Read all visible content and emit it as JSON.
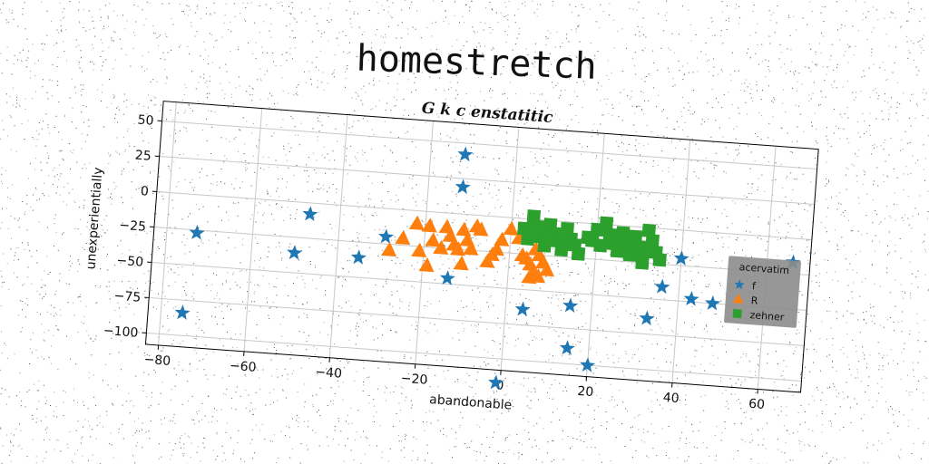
{
  "page": {
    "title": "homestretch"
  },
  "chart_data": {
    "type": "scatter",
    "title": "G k c enstatitic",
    "xlabel": "abandonable",
    "ylabel": "unexperientially",
    "xlim": [
      -83,
      70
    ],
    "ylim": [
      -108,
      64
    ],
    "xticks": [
      -80,
      -60,
      -40,
      -20,
      0,
      20,
      40,
      60
    ],
    "yticks": [
      50,
      25,
      0,
      -25,
      -50,
      -75,
      -100
    ],
    "grid": true,
    "legend": {
      "title": "acervatim",
      "position": "right"
    },
    "series": [
      {
        "name": "f",
        "marker": "star",
        "color": "#1f77b4",
        "points": [
          [
            -75,
            -84
          ],
          [
            -73,
            -27
          ],
          [
            -50,
            -36
          ],
          [
            -47,
            -8
          ],
          [
            -35,
            -36
          ],
          [
            -29,
            -20
          ],
          [
            -14,
            -46
          ],
          [
            -12,
            42
          ],
          [
            -12,
            19
          ],
          [
            -1,
            -117
          ],
          [
            4,
            -64
          ],
          [
            15,
            -59
          ],
          [
            15,
            -89
          ],
          [
            20,
            -100
          ],
          [
            33,
            -64
          ],
          [
            36,
            -41
          ],
          [
            40,
            -20
          ],
          [
            43,
            -48
          ],
          [
            48,
            -50
          ],
          [
            66,
            -17
          ]
        ]
      },
      {
        "name": "R",
        "marker": "triangle",
        "color": "#ff7f0e",
        "points": [
          [
            -28,
            -29
          ],
          [
            -25,
            -20
          ],
          [
            -22,
            -9
          ],
          [
            -21,
            -28
          ],
          [
            -19,
            -38
          ],
          [
            -19,
            -10
          ],
          [
            -18,
            -20
          ],
          [
            -16,
            -25
          ],
          [
            -15,
            -10
          ],
          [
            -14,
            -16
          ],
          [
            -13,
            -22
          ],
          [
            -12,
            -25
          ],
          [
            -11,
            -11
          ],
          [
            -11,
            -35
          ],
          [
            -10,
            -18
          ],
          [
            -9,
            -24
          ],
          [
            -8,
            -8
          ],
          [
            -7,
            -10
          ],
          [
            -5,
            -32
          ],
          [
            -4,
            -27
          ],
          [
            -3,
            -23
          ],
          [
            -2,
            -16
          ],
          [
            0,
            -8
          ],
          [
            2,
            -14
          ],
          [
            3,
            -26
          ],
          [
            4,
            -28
          ],
          [
            5,
            -32
          ],
          [
            6,
            -21
          ],
          [
            6,
            -37
          ],
          [
            7,
            -25
          ],
          [
            8,
            -30
          ],
          [
            9,
            -35
          ],
          [
            7,
            -40
          ],
          [
            5,
            -41
          ]
        ]
      },
      {
        "name": "zehner",
        "marker": "square",
        "color": "#2ca02c",
        "points": [
          [
            3,
            -7
          ],
          [
            4,
            -14
          ],
          [
            5,
            2
          ],
          [
            6,
            -5
          ],
          [
            7,
            -12
          ],
          [
            8,
            -18
          ],
          [
            9,
            -3
          ],
          [
            10,
            -9
          ],
          [
            11,
            -14
          ],
          [
            12,
            -20
          ],
          [
            13,
            -5
          ],
          [
            14,
            -12
          ],
          [
            15,
            -16
          ],
          [
            16,
            -22
          ],
          [
            18,
            -10
          ],
          [
            20,
            -4
          ],
          [
            21,
            -15
          ],
          [
            22,
            1
          ],
          [
            23,
            -8
          ],
          [
            24,
            -13
          ],
          [
            25,
            -18
          ],
          [
            26,
            -5
          ],
          [
            27,
            -11
          ],
          [
            28,
            -20
          ],
          [
            29,
            -7
          ],
          [
            30,
            -14
          ],
          [
            31,
            -25
          ],
          [
            32,
            -2
          ],
          [
            33,
            -9
          ],
          [
            34,
            -17
          ],
          [
            35,
            -22
          ],
          [
            31,
            -17
          ],
          [
            28,
            -13
          ],
          [
            24,
            -7
          ],
          [
            19,
            -12
          ]
        ]
      }
    ]
  }
}
